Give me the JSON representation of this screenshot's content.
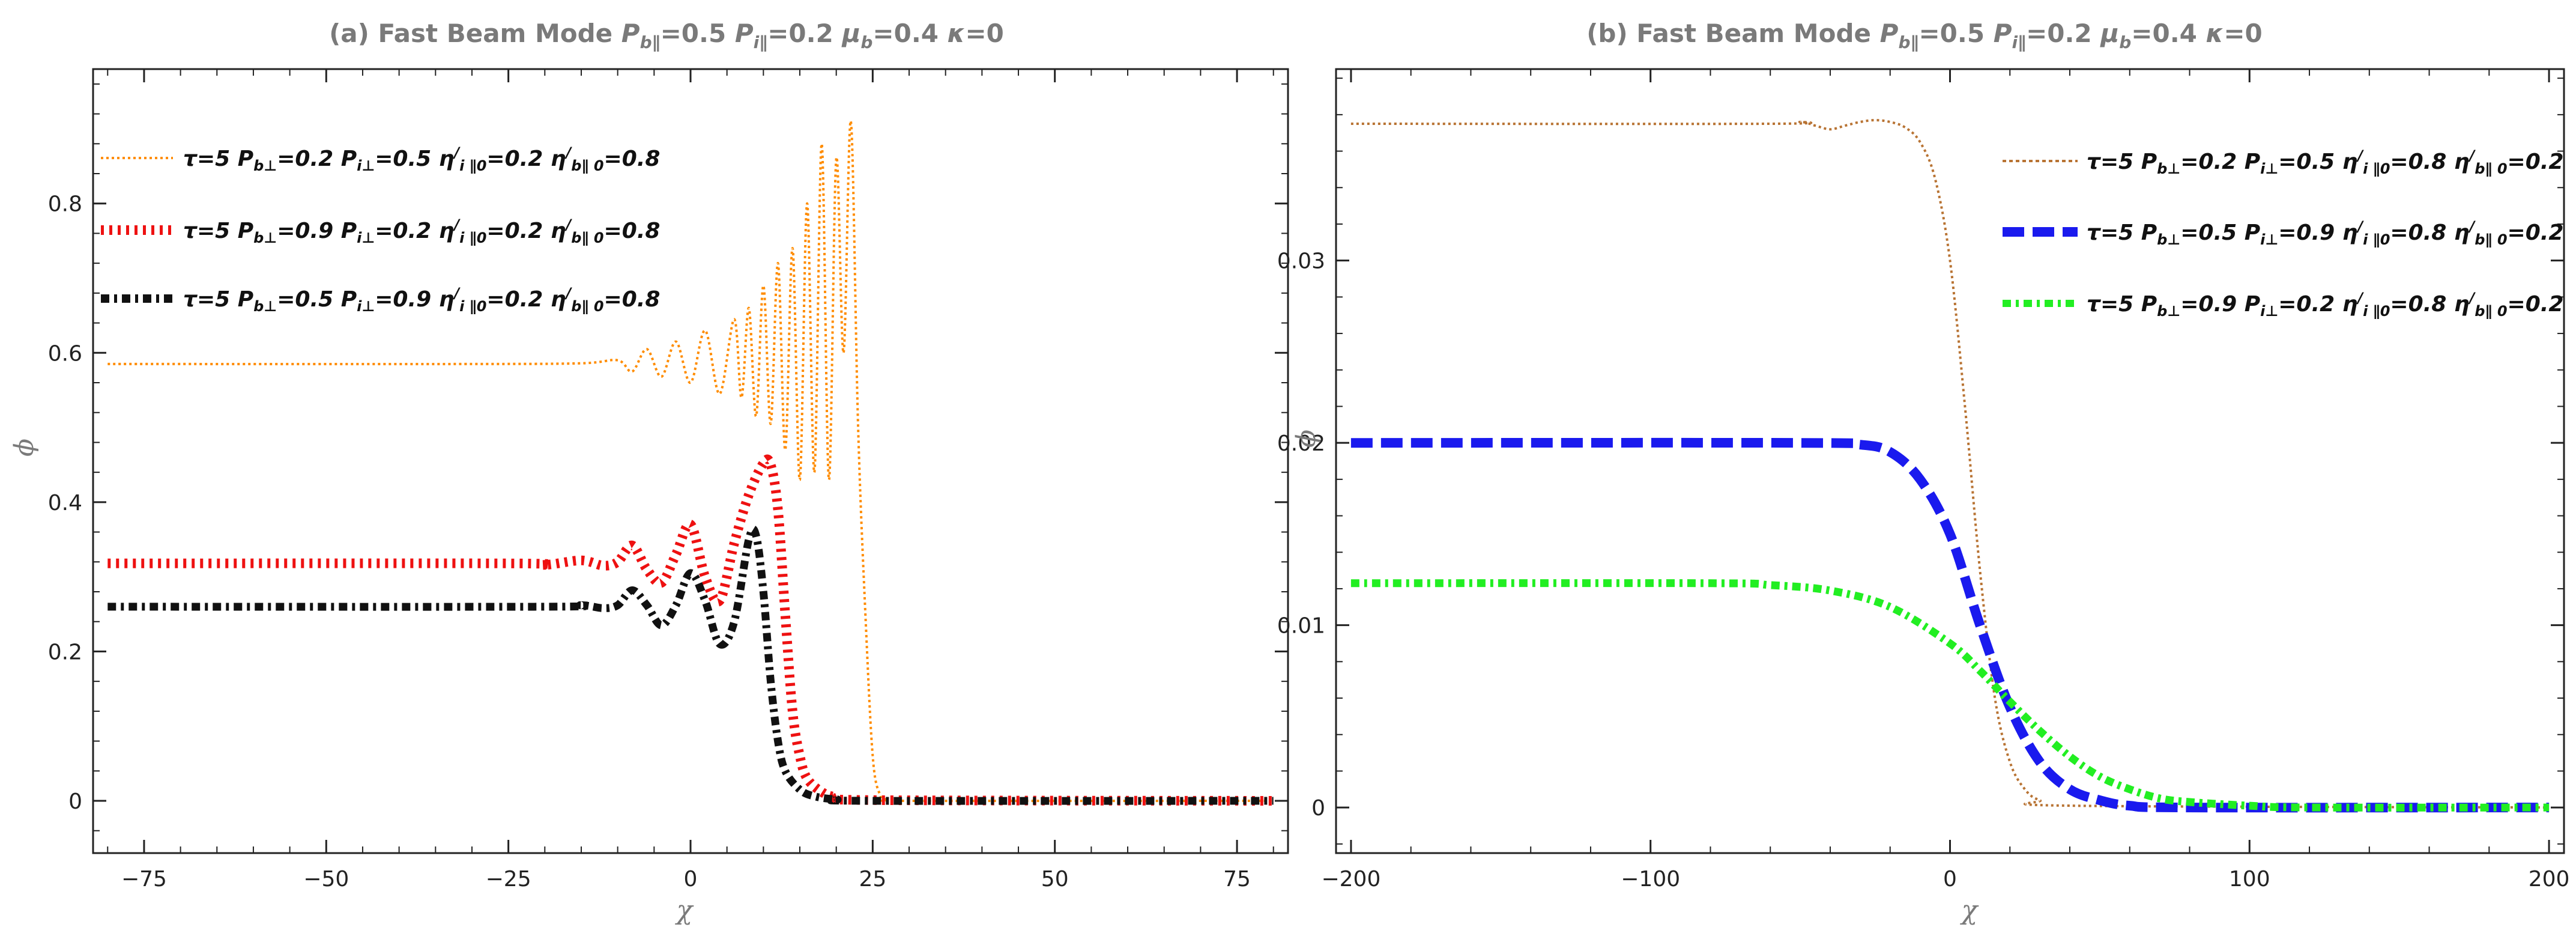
{
  "chart_data": [
    {
      "type": "line",
      "title": "(a) Fast Beam Mode P_b∥=0.5 P_i∥=0.2 μ_b=0.4 κ=0",
      "xlabel": "χ",
      "ylabel": "ϕ",
      "xlim": [
        -82,
        82
      ],
      "ylim": [
        -0.07,
        0.98
      ],
      "xticks": [
        -75,
        -50,
        -25,
        0,
        25,
        50,
        75
      ],
      "xtick_labels": [
        "−75",
        "−50",
        "−25",
        "0",
        "25",
        "50",
        "75"
      ],
      "yticks": [
        0,
        0.2,
        0.4,
        0.6,
        0.8
      ],
      "ytick_labels": [
        "0",
        "0.2",
        "0.4",
        "0.6",
        "0.8"
      ],
      "legend_position": "top-left",
      "series": [
        {
          "name": "τ=5 P_b⊥=0.2 P_i⊥=0.5 η'_i∥0=0.2 η'_b∥0=0.8",
          "color": "#ff8c00",
          "style": "dotted-thin",
          "x": [
            -80,
            -30,
            -15,
            -10,
            -8,
            -6,
            -4,
            -2,
            0,
            2,
            4,
            6,
            7,
            8,
            9,
            10,
            11,
            12,
            13,
            14,
            15,
            16,
            17,
            18,
            19,
            20,
            21,
            22,
            23,
            24,
            25,
            26,
            27,
            30,
            80
          ],
          "y": [
            0.585,
            0.585,
            0.586,
            0.59,
            0.575,
            0.605,
            0.568,
            0.615,
            0.56,
            0.63,
            0.545,
            0.645,
            0.54,
            0.66,
            0.515,
            0.69,
            0.505,
            0.72,
            0.47,
            0.74,
            0.43,
            0.8,
            0.44,
            0.88,
            0.43,
            0.86,
            0.6,
            0.91,
            0.5,
            0.25,
            0.06,
            0.008,
            0.002,
            0.0,
            0.0
          ]
        },
        {
          "name": "τ=5 P_b⊥=0.9 P_i⊥=0.2 η'_i∥0=0.2 η'_b∥0=0.8",
          "color": "#ee1111",
          "style": "dotted-thick",
          "x": [
            -80,
            -25,
            -20,
            -15,
            -12,
            -10,
            -8,
            -6,
            -4,
            -2,
            0,
            2,
            4,
            6,
            8,
            10,
            11,
            12,
            13,
            14,
            15,
            16,
            18,
            20,
            25,
            80
          ],
          "y": [
            0.318,
            0.318,
            0.316,
            0.322,
            0.315,
            0.32,
            0.342,
            0.31,
            0.292,
            0.33,
            0.37,
            0.3,
            0.268,
            0.345,
            0.41,
            0.452,
            0.45,
            0.39,
            0.25,
            0.12,
            0.06,
            0.03,
            0.012,
            0.005,
            0.001,
            0.0
          ]
        },
        {
          "name": "τ=5 P_b⊥=0.5 P_i⊥=0.9 η'_i∥0=0.2 η'_b∥0=0.8",
          "color": "#111111",
          "style": "dash-dot-thick",
          "x": [
            -80,
            -20,
            -15,
            -12,
            -10,
            -8,
            -6,
            -4,
            -2,
            0,
            2,
            4,
            6,
            8,
            9,
            10,
            11,
            12,
            13,
            15,
            17,
            20,
            25,
            80
          ],
          "y": [
            0.26,
            0.26,
            0.262,
            0.258,
            0.262,
            0.282,
            0.262,
            0.235,
            0.262,
            0.305,
            0.268,
            0.21,
            0.24,
            0.35,
            0.355,
            0.28,
            0.16,
            0.08,
            0.04,
            0.015,
            0.006,
            0.002,
            0.0,
            0.0
          ]
        }
      ]
    },
    {
      "type": "line",
      "title": "(b) Fast Beam Mode P_b∥=0.5 P_i∥=0.2 μ_b=0.4 κ=0",
      "xlabel": "χ",
      "ylabel": "ϕ",
      "xlim": [
        -205,
        205
      ],
      "ylim": [
        -0.0025,
        0.0405
      ],
      "xticks": [
        -200,
        -100,
        0,
        100,
        200
      ],
      "xtick_labels": [
        "−200",
        "−100",
        "0",
        "100",
        "200"
      ],
      "yticks": [
        0,
        0.01,
        0.02,
        0.03
      ],
      "ytick_labels": [
        "0",
        "0.01",
        "0.02",
        "0.03"
      ],
      "legend_position": "top-right",
      "series": [
        {
          "name": "τ=5 P_b⊥=0.2 P_i⊥=0.5 η'_i∥0=0.8 η'_b∥0=0.2",
          "color": "#b87333",
          "style": "dotted-thin",
          "x": [
            -200,
            -60,
            -50,
            -45,
            -40,
            -35,
            -30,
            -25,
            -20,
            -15,
            -10,
            -5,
            0,
            5,
            10,
            15,
            20,
            25,
            30,
            40,
            200
          ],
          "y": [
            0.0375,
            0.0375,
            0.0376,
            0.0374,
            0.0372,
            0.0374,
            0.0376,
            0.0377,
            0.0376,
            0.0373,
            0.0365,
            0.0345,
            0.03,
            0.022,
            0.013,
            0.006,
            0.0025,
            0.001,
            0.0004,
            0.0001,
            0.0
          ]
        },
        {
          "name": "τ=5 P_b⊥=0.5 P_i⊥=0.9 η'_i∥0=0.8 η'_b∥0=0.2",
          "color": "#1a1aee",
          "style": "dashed-thick",
          "x": [
            -200,
            -50,
            -30,
            -20,
            -10,
            0,
            10,
            20,
            30,
            40,
            50,
            60,
            80,
            200
          ],
          "y": [
            0.02,
            0.02,
            0.0199,
            0.0195,
            0.018,
            0.015,
            0.01,
            0.0055,
            0.0025,
            0.001,
            0.0004,
            0.0001,
            0.0,
            0.0
          ]
        },
        {
          "name": "τ=5 P_b⊥=0.9 P_i⊥=0.2 η'_i∥0=0.8 η'_b∥0=0.2",
          "color": "#22ee22",
          "style": "dash-dot-thick",
          "x": [
            -200,
            -80,
            -60,
            -40,
            -20,
            0,
            10,
            20,
            30,
            40,
            50,
            60,
            70,
            80,
            100,
            120,
            200
          ],
          "y": [
            0.0123,
            0.0123,
            0.0122,
            0.0119,
            0.011,
            0.009,
            0.0075,
            0.0058,
            0.0042,
            0.0028,
            0.0017,
            0.001,
            0.0005,
            0.0003,
            0.0001,
            0.0,
            0.0
          ]
        }
      ]
    }
  ]
}
